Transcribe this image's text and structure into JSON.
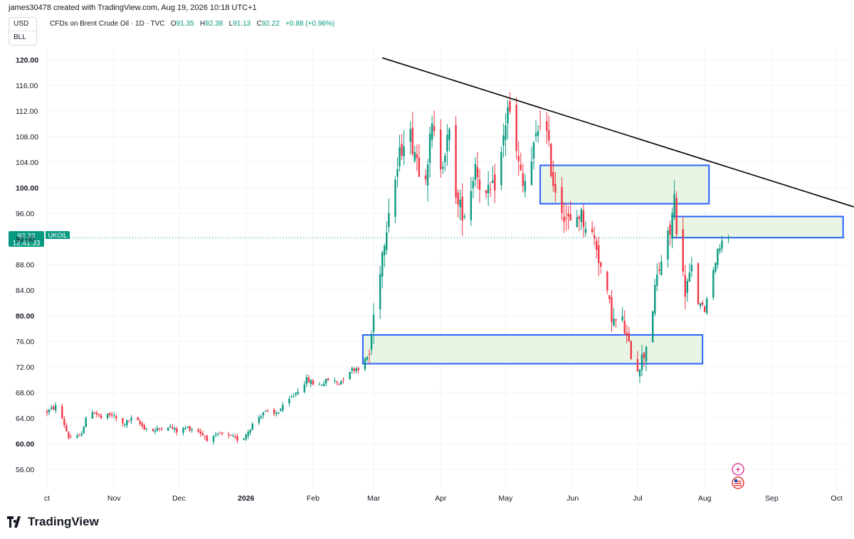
{
  "header": {
    "created_by": "james30478 created with TradingView.com, Aug 19, 2026 10:18 UTC+1"
  },
  "symbol_box": {
    "currency": "USD",
    "unit": "BLL"
  },
  "legend": {
    "name": "CFDs on Brent Crude Oil · 1D · TVC",
    "o_label": "O",
    "o_value": "91.35",
    "h_label": "H",
    "h_value": "92.38",
    "l_label": "L",
    "l_value": "91.13",
    "c_label": "C",
    "c_value": "92.22",
    "change": "+0.88 (+0.96%)"
  },
  "price_tag": {
    "price": "92.22",
    "countdown": "12:41:33",
    "symbol": "UKOIL"
  },
  "branding": {
    "logo_text": "TradingView"
  },
  "colors": {
    "up": "#089981",
    "down": "#f23645",
    "zone_border": "#2962ff",
    "zone_fill": "#e8f5e4",
    "trendline": "#000000"
  },
  "chart_data": {
    "type": "candlestick",
    "ylim": [
      52.5,
      122
    ],
    "y_ticks": [
      "120.00",
      "116.00",
      "112.00",
      "108.00",
      "104.00",
      "100.00",
      "96.00",
      "92.00",
      "88.00",
      "84.00",
      "80.00",
      "76.00",
      "72.00",
      "68.00",
      "64.00",
      "60.00",
      "56.00"
    ],
    "bold_ticks": [
      "120.00",
      "100.00",
      "80.00",
      "60.00"
    ],
    "x_labels": [
      {
        "label": "ct",
        "day": 0
      },
      {
        "label": "Nov",
        "day": 31
      },
      {
        "label": "Dec",
        "day": 61
      },
      {
        "label": "2026",
        "day": 92,
        "bold": true
      },
      {
        "label": "Feb",
        "day": 123
      },
      {
        "label": "Mar",
        "day": 151
      },
      {
        "label": "Apr",
        "day": 182
      },
      {
        "label": "May",
        "day": 212
      },
      {
        "label": "Jun",
        "day": 243
      },
      {
        "label": "Jul",
        "day": 273
      },
      {
        "label": "Aug",
        "day": 304
      },
      {
        "label": "Sep",
        "day": 335
      },
      {
        "label": "Oct",
        "day": 365
      }
    ],
    "anchors": [
      [
        0,
        65
      ],
      [
        5,
        66
      ],
      [
        10,
        61
      ],
      [
        15,
        61
      ],
      [
        20,
        65.5
      ],
      [
        25,
        64
      ],
      [
        30,
        64.5
      ],
      [
        35,
        63
      ],
      [
        40,
        64
      ],
      [
        45,
        62.5
      ],
      [
        50,
        62
      ],
      [
        55,
        63
      ],
      [
        60,
        62
      ],
      [
        65,
        62.5
      ],
      [
        70,
        62
      ],
      [
        75,
        60.5
      ],
      [
        80,
        61.5
      ],
      [
        85,
        61
      ],
      [
        90,
        60.5
      ],
      [
        95,
        63
      ],
      [
        100,
        65
      ],
      [
        105,
        64.5
      ],
      [
        110,
        66
      ],
      [
        115,
        68
      ],
      [
        120,
        70
      ],
      [
        125,
        69
      ],
      [
        130,
        70
      ],
      [
        135,
        69.5
      ],
      [
        140,
        71.5
      ],
      [
        145,
        72
      ],
      [
        149,
        74
      ],
      [
        152,
        83
      ],
      [
        155,
        90
      ],
      [
        158,
        97
      ],
      [
        162,
        103
      ],
      [
        166,
        110
      ],
      [
        170,
        106
      ],
      [
        174,
        101
      ],
      [
        178,
        109
      ],
      [
        182,
        104
      ],
      [
        186,
        108
      ],
      [
        190,
        97
      ],
      [
        194,
        96
      ],
      [
        198,
        104
      ],
      [
        202,
        98
      ],
      [
        206,
        99.5
      ],
      [
        210,
        105
      ],
      [
        213,
        113
      ],
      [
        216,
        107
      ],
      [
        220,
        100
      ],
      [
        224,
        104
      ],
      [
        228,
        111
      ],
      [
        231,
        108
      ],
      [
        234,
        101
      ],
      [
        238,
        97
      ],
      [
        242,
        94
      ],
      [
        246,
        96
      ],
      [
        250,
        94
      ],
      [
        254,
        91
      ],
      [
        258,
        84
      ],
      [
        262,
        79
      ],
      [
        266,
        79
      ],
      [
        269,
        75
      ],
      [
        273,
        72
      ],
      [
        276,
        74
      ],
      [
        279,
        79
      ],
      [
        282,
        86
      ],
      [
        285,
        90
      ],
      [
        288,
        93
      ],
      [
        290,
        98.5
      ],
      [
        292,
        90
      ],
      [
        295,
        84
      ],
      [
        298,
        87
      ],
      [
        301,
        82
      ],
      [
        304,
        81
      ],
      [
        307,
        86
      ],
      [
        310,
        90
      ],
      [
        313,
        93
      ],
      [
        315,
        92.22
      ]
    ],
    "zones": [
      {
        "day_start": 146,
        "day_end": 303,
        "top": 77.0,
        "bottom": 72.5
      },
      {
        "day_start": 228,
        "day_end": 306,
        "top": 103.5,
        "bottom": 97.5
      },
      {
        "day_start": 289,
        "day_end": 368,
        "top": 95.5,
        "bottom": 92.2
      }
    ],
    "trendline": {
      "day_start": 155,
      "value_start": 120.3,
      "day_end": 373,
      "value_end": 97.0
    },
    "current_price": 92.22
  }
}
